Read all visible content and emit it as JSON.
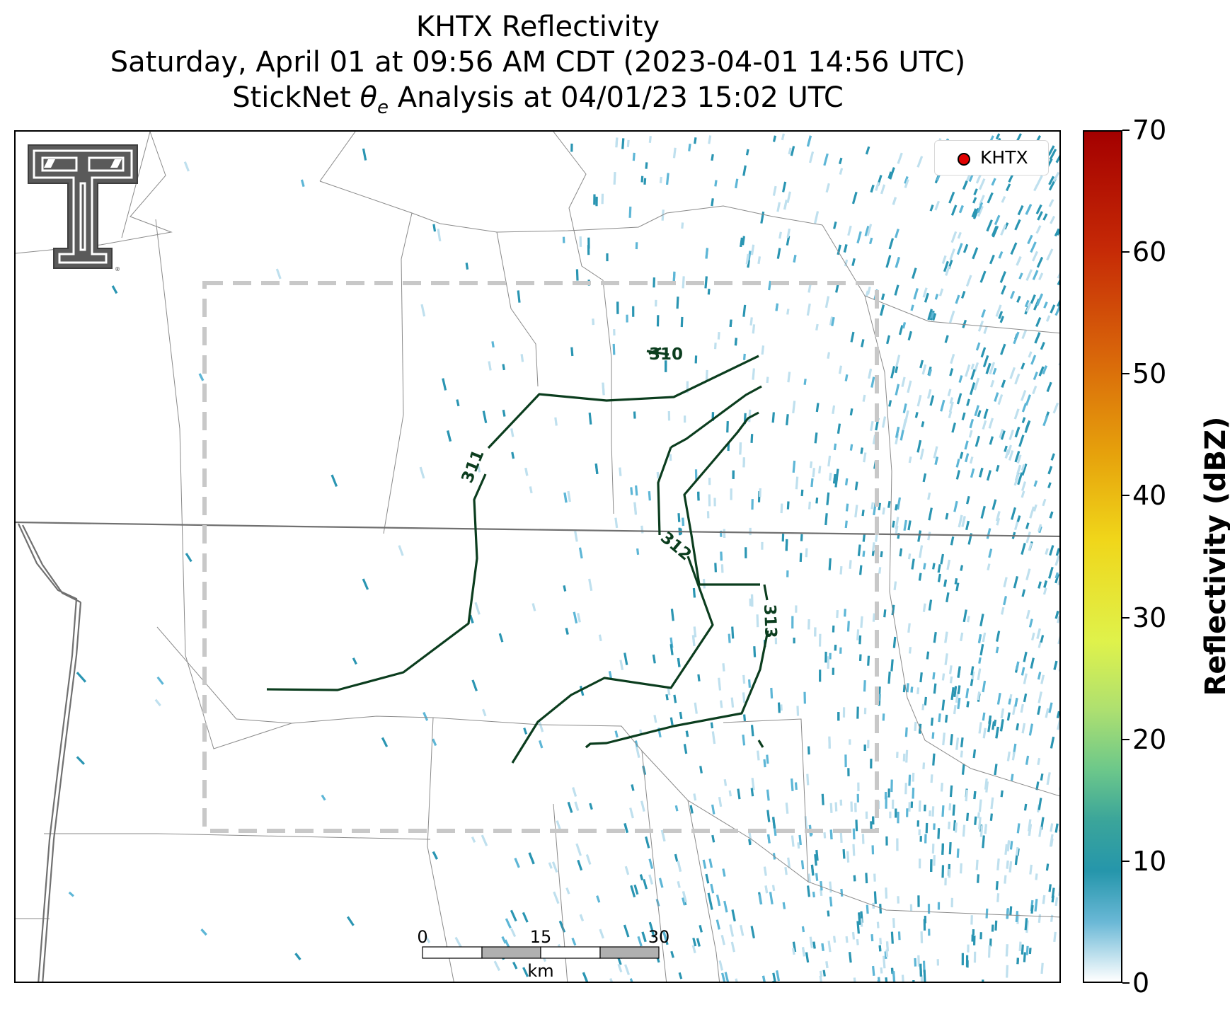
{
  "title": {
    "line1": "KHTX Reflectivity",
    "line2": "Saturday, April 01 at 09:56 AM CDT (2023-04-01 14:56 UTC)",
    "line3_prefix": "StickNet ",
    "line3_symbol": "θ",
    "line3_sub": "e",
    "line3_suffix": " Analysis at 04/01/23 15:02 UTC"
  },
  "legend": {
    "station": "KHTX",
    "marker_color": "#e00000"
  },
  "contours": [
    {
      "label": "310"
    },
    {
      "label": "311"
    },
    {
      "label": "312"
    },
    {
      "label": "313"
    }
  ],
  "contour_color": "#0b3d1e",
  "scale_bar": {
    "ticks": [
      "0",
      "15",
      "30"
    ],
    "unit": "km"
  },
  "colorbar": {
    "title": "Reflectivity (dBZ)",
    "range": [
      0,
      70
    ],
    "ticks": [
      "0",
      "10",
      "20",
      "30",
      "40",
      "50",
      "60",
      "70"
    ]
  },
  "colors": {
    "echo_light": "#bfe0ee",
    "echo_mid": "#5db6d6",
    "echo_dark": "#2a95b2",
    "box_dash": "#c8c8c8"
  }
}
